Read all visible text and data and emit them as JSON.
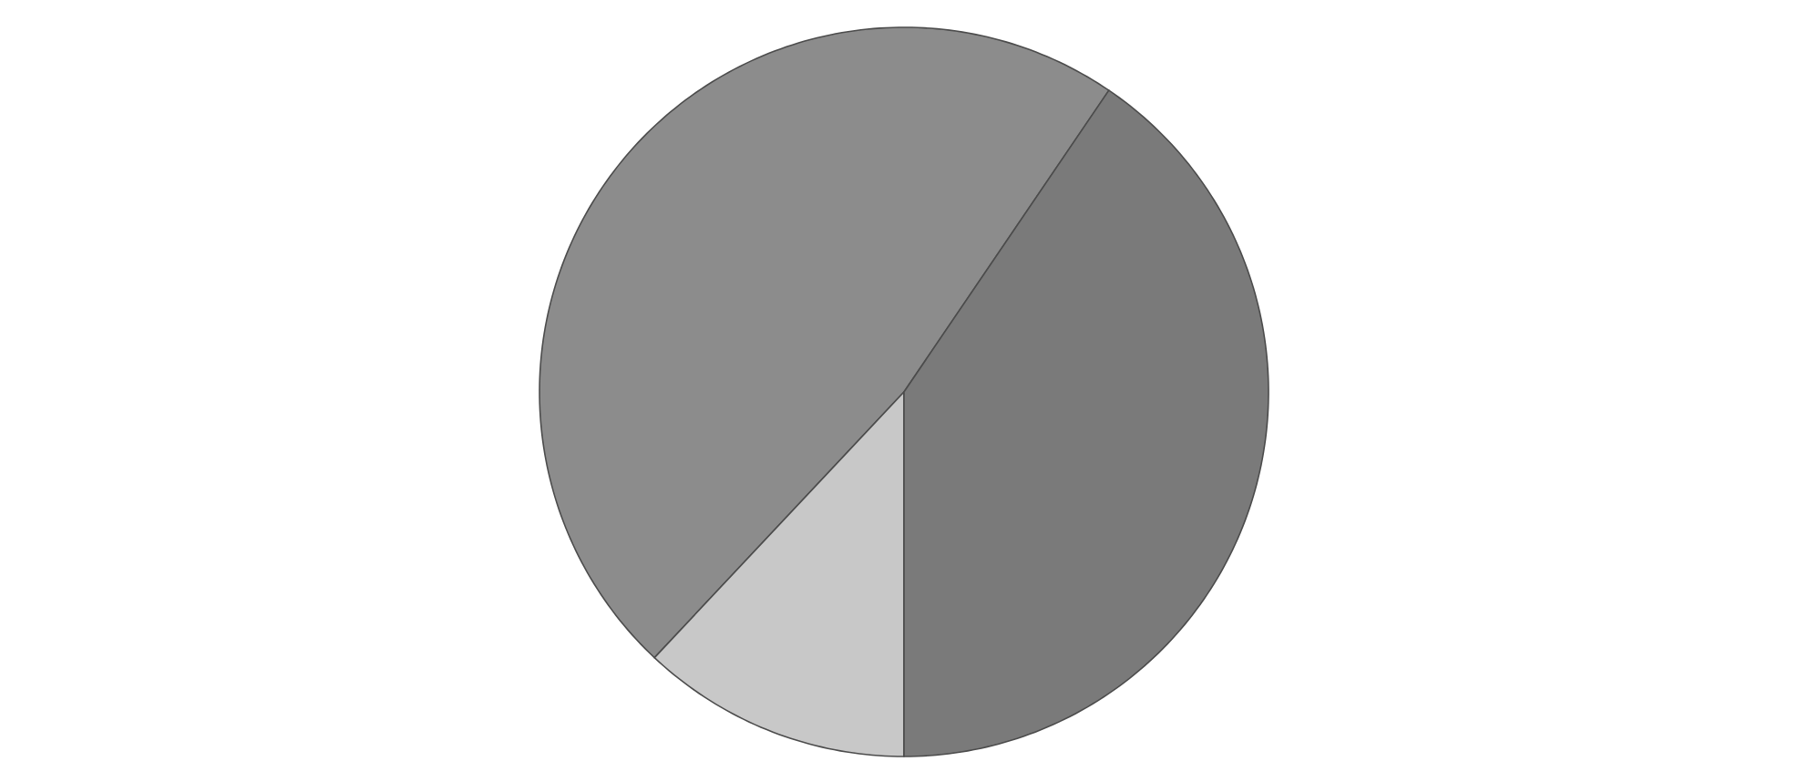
{
  "chart_data": {
    "type": "pie",
    "categories": [
      null,
      null,
      null
    ],
    "values": [
      47.5,
      12,
      40.5
    ],
    "colors": [
      "#8c8c8c",
      "#c8c8c8",
      "#7a7a7a"
    ]
  }
}
